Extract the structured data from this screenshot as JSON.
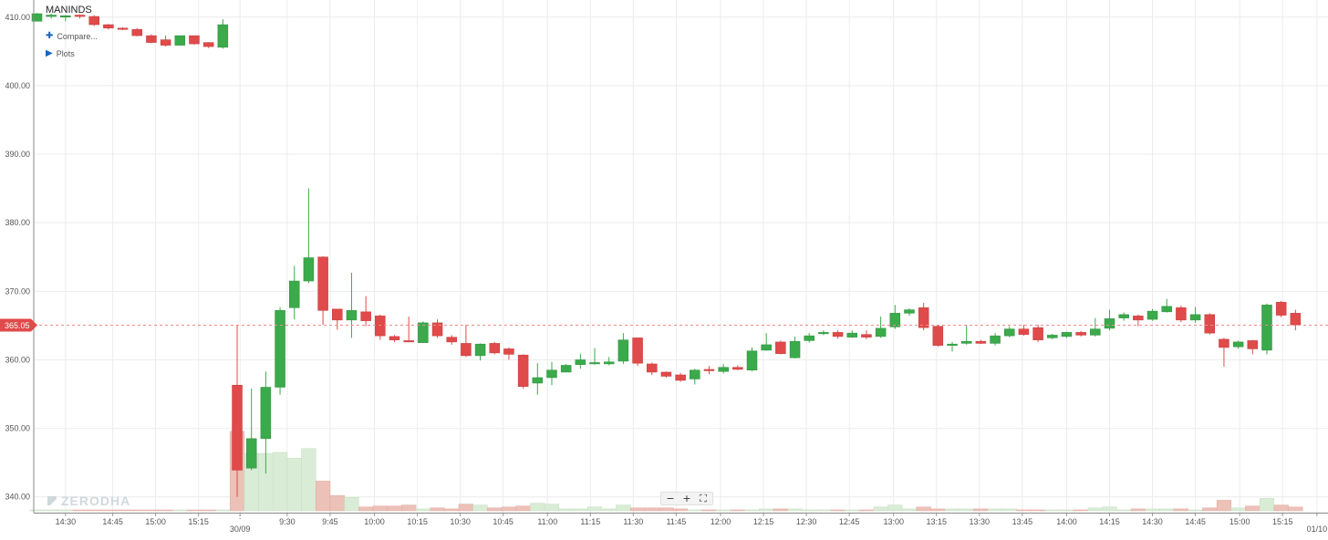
{
  "header": {
    "symbol": "MANINDS",
    "compare_label": "Compare...",
    "plots_label": "Plots"
  },
  "watermark": "ZERODHA",
  "zoom": {
    "minus": "−",
    "plus": "+",
    "fit": "⛶"
  },
  "colors": {
    "up": "#3aaa4b",
    "down": "#e04a4a",
    "up_volume": "#d9ecd5",
    "down_volume": "#ecc1b8",
    "grid": "#ececec",
    "last_price_line": "#f08a8a",
    "last_price_badge": "#e04a4a"
  },
  "chart_data": {
    "type": "candlestick",
    "ylim": [
      337.7,
      412.5
    ],
    "y_ticks": [
      "340.00",
      "350.00",
      "360.00",
      "370.00",
      "380.00",
      "390.00",
      "400.00",
      "410.00"
    ],
    "x_ticks": [
      "14:30",
      "14:45",
      "15:00",
      "15:15",
      "30/09",
      "9:30",
      "9:45",
      "10:00",
      "10:15",
      "10:30",
      "10:45",
      "11:00",
      "11:15",
      "11:30",
      "11:45",
      "12:00",
      "12:15",
      "12:30",
      "12:45",
      "13:00",
      "13:15",
      "13:30",
      "13:45",
      "14:00",
      "14:15",
      "14:30",
      "14:45",
      "15:00",
      "15:15",
      "01/10"
    ],
    "last_price": "365.05",
    "candles": [
      [
        409.4,
        410.5,
        410.6,
        409.4
      ],
      [
        410.2,
        410.3,
        410.5,
        409.8
      ],
      [
        410.0,
        410.2,
        410.3,
        409.4
      ],
      [
        410.3,
        410.1,
        410.4,
        409.8
      ],
      [
        410.1,
        408.9,
        410.3,
        408.7
      ],
      [
        408.9,
        408.4,
        409.0,
        408.2
      ],
      [
        408.4,
        408.2,
        408.5,
        408.1
      ],
      [
        408.2,
        407.3,
        408.4,
        407.2
      ],
      [
        407.3,
        406.3,
        407.5,
        406.2
      ],
      [
        406.7,
        405.9,
        407.3,
        405.7
      ],
      [
        405.9,
        407.3,
        407.3,
        405.9
      ],
      [
        407.3,
        406.1,
        407.3,
        406.0
      ],
      [
        406.3,
        405.7,
        406.3,
        405.5
      ],
      [
        405.6,
        408.9,
        409.7,
        405.4
      ],
      [
        356.3,
        343.9,
        365.1,
        340.0
      ],
      [
        344.2,
        348.5,
        355.8,
        343.9
      ],
      [
        348.5,
        356.0,
        358.3,
        343.4
      ],
      [
        356.0,
        367.2,
        367.7,
        354.9
      ],
      [
        367.6,
        371.5,
        373.7,
        365.9
      ],
      [
        371.5,
        374.9,
        385.0,
        371.2
      ],
      [
        375.0,
        367.2,
        375.1,
        365.1
      ],
      [
        367.4,
        365.8,
        367.4,
        364.4
      ],
      [
        365.8,
        367.2,
        372.7,
        363.2
      ],
      [
        367.0,
        365.7,
        369.3,
        364.9
      ],
      [
        366.4,
        363.5,
        366.6,
        362.9
      ],
      [
        363.4,
        362.9,
        363.6,
        362.6
      ],
      [
        362.8,
        362.7,
        366.3,
        362.6
      ],
      [
        362.5,
        365.4,
        365.6,
        362.5
      ],
      [
        365.4,
        363.5,
        365.9,
        363.2
      ],
      [
        363.3,
        362.6,
        363.6,
        362.2
      ],
      [
        362.4,
        360.6,
        365.1,
        360.4
      ],
      [
        360.6,
        362.3,
        362.4,
        359.9
      ],
      [
        362.4,
        361.0,
        362.6,
        360.8
      ],
      [
        361.6,
        360.8,
        361.8,
        360.0
      ],
      [
        360.7,
        356.1,
        360.8,
        355.8
      ],
      [
        356.6,
        357.4,
        359.5,
        354.9
      ],
      [
        357.4,
        358.5,
        359.7,
        356.3
      ],
      [
        358.2,
        359.2,
        359.4,
        358.2
      ],
      [
        359.3,
        360.0,
        360.9,
        358.7
      ],
      [
        359.5,
        359.6,
        361.7,
        359.3
      ],
      [
        359.4,
        359.7,
        360.4,
        359.2
      ],
      [
        359.8,
        362.9,
        363.9,
        359.4
      ],
      [
        363.2,
        359.5,
        363.2,
        359.1
      ],
      [
        359.4,
        358.2,
        359.6,
        357.8
      ],
      [
        358.2,
        357.6,
        358.3,
        357.4
      ],
      [
        357.8,
        357.0,
        358.1,
        356.8
      ],
      [
        357.2,
        358.5,
        358.7,
        356.4
      ],
      [
        358.6,
        358.4,
        359.1,
        357.9
      ],
      [
        358.3,
        358.9,
        359.4,
        358.0
      ],
      [
        358.9,
        358.6,
        359.2,
        358.5
      ],
      [
        358.5,
        361.3,
        361.8,
        358.3
      ],
      [
        361.4,
        362.2,
        363.9,
        361.3
      ],
      [
        362.6,
        360.9,
        362.8,
        360.8
      ],
      [
        360.3,
        362.7,
        363.4,
        360.2
      ],
      [
        362.8,
        363.5,
        363.9,
        362.5
      ],
      [
        363.8,
        364.0,
        364.3,
        363.6
      ],
      [
        364.0,
        363.4,
        364.3,
        363.1
      ],
      [
        363.3,
        363.9,
        364.3,
        363.2
      ],
      [
        363.7,
        363.3,
        364.3,
        363.0
      ],
      [
        363.4,
        364.6,
        366.3,
        363.2
      ],
      [
        364.8,
        366.8,
        368.0,
        364.5
      ],
      [
        366.8,
        367.3,
        367.5,
        366.4
      ],
      [
        367.6,
        364.7,
        368.3,
        364.3
      ],
      [
        364.9,
        362.1,
        365.0,
        361.9
      ],
      [
        362.1,
        362.3,
        362.6,
        361.2
      ],
      [
        362.4,
        362.7,
        365.1,
        362.2
      ],
      [
        362.7,
        362.4,
        362.9,
        362.3
      ],
      [
        362.4,
        363.5,
        363.9,
        362.1
      ],
      [
        363.5,
        364.5,
        364.9,
        363.3
      ],
      [
        364.5,
        363.7,
        365.1,
        363.5
      ],
      [
        364.7,
        362.9,
        365.1,
        362.6
      ],
      [
        363.2,
        363.6,
        363.8,
        363.0
      ],
      [
        363.4,
        364.0,
        364.1,
        363.2
      ],
      [
        364.0,
        363.6,
        364.2,
        363.4
      ],
      [
        363.6,
        364.5,
        366.1,
        363.4
      ],
      [
        364.6,
        366.0,
        367.3,
        364.3
      ],
      [
        366.1,
        366.6,
        366.9,
        365.7
      ],
      [
        366.4,
        365.8,
        366.6,
        364.9
      ],
      [
        365.9,
        367.1,
        367.4,
        365.7
      ],
      [
        367.0,
        367.8,
        368.9,
        366.9
      ],
      [
        367.6,
        365.8,
        367.9,
        365.5
      ],
      [
        365.8,
        366.6,
        367.7,
        365.4
      ],
      [
        366.6,
        363.9,
        366.8,
        363.7
      ],
      [
        363.0,
        361.8,
        363.2,
        359.0
      ],
      [
        361.9,
        362.6,
        362.8,
        361.6
      ],
      [
        362.8,
        361.6,
        362.9,
        360.8
      ],
      [
        361.4,
        368.0,
        368.2,
        360.8
      ],
      [
        368.4,
        366.5,
        368.6,
        366.2
      ],
      [
        366.8,
        365.1,
        367.3,
        364.3
      ]
    ],
    "volume_ylim": [
      0,
      100
    ],
    "volume": [
      0,
      0,
      0,
      0,
      0,
      0,
      0,
      0,
      0,
      0,
      0,
      0,
      0,
      0,
      83,
      60,
      60,
      61,
      55,
      65,
      31,
      16,
      14,
      4,
      5,
      5,
      6,
      2,
      3,
      2,
      7,
      6,
      3,
      4,
      5,
      8,
      7,
      2,
      2,
      4,
      2,
      6,
      3,
      3,
      3,
      2,
      1,
      1,
      1,
      1,
      1,
      2,
      2,
      2,
      1,
      1,
      1,
      1,
      1,
      4,
      6,
      2,
      4,
      2,
      2,
      2,
      2,
      2,
      2,
      1,
      1,
      1,
      1,
      1,
      3,
      4,
      1,
      2,
      2,
      2,
      2,
      1,
      3,
      11,
      3,
      5,
      13,
      6,
      4
    ]
  }
}
